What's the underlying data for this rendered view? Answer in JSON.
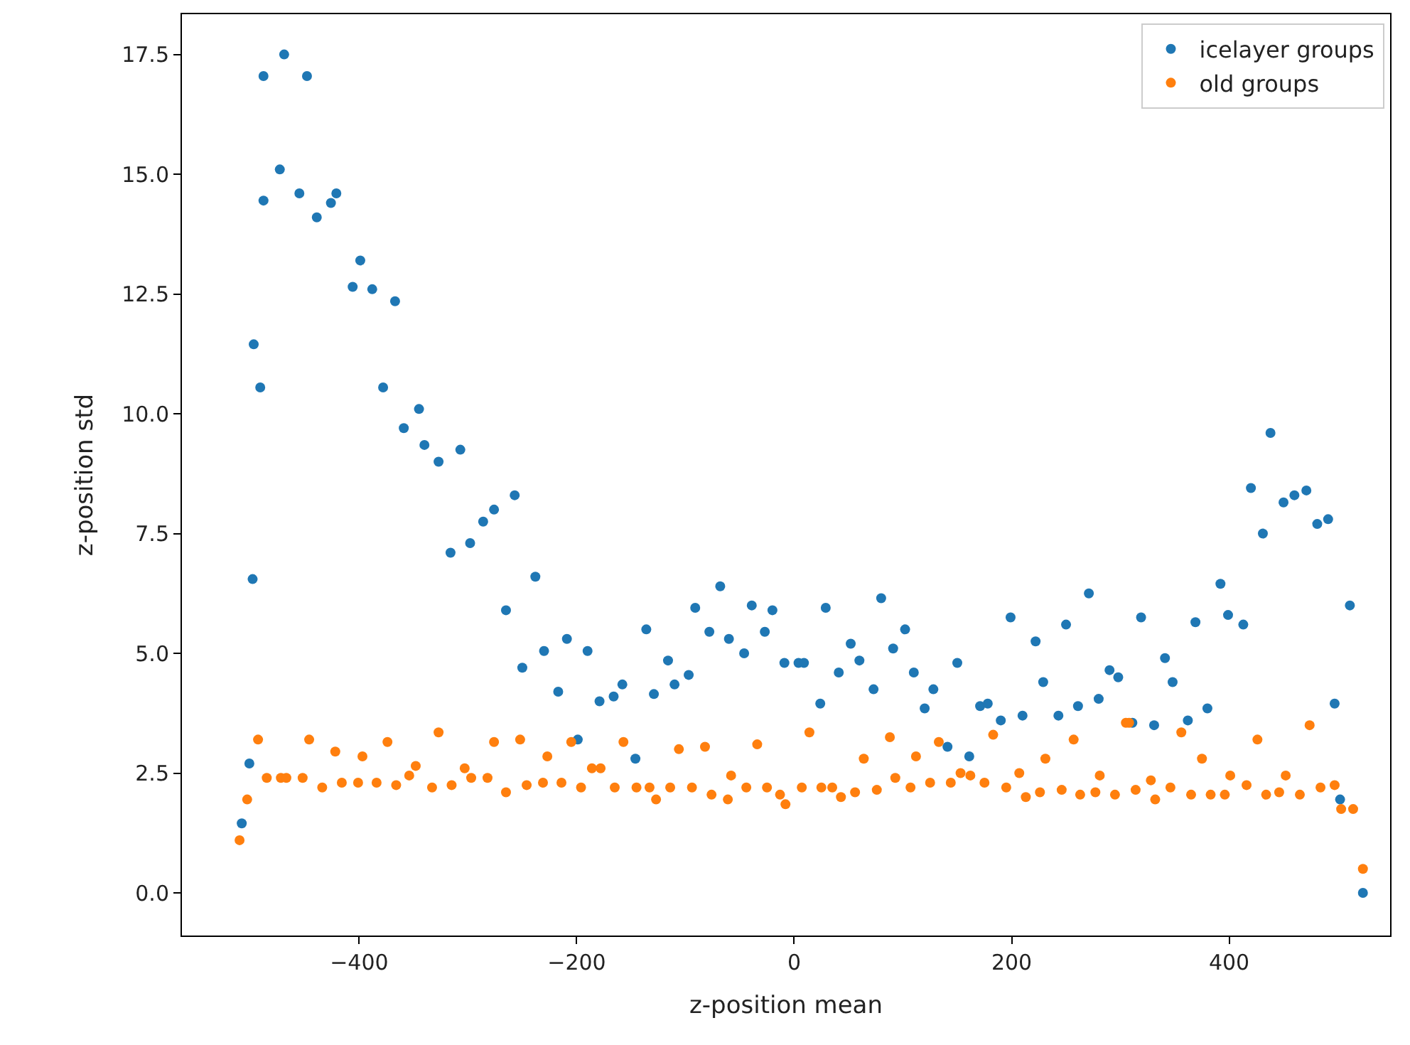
{
  "chart_data": {
    "type": "scatter",
    "xlabel": "z-position mean",
    "ylabel": "z-position std",
    "legend": "top right",
    "marker": "circle",
    "xlim": [
      -563,
      548
    ],
    "ylim": [
      -0.89,
      18.34
    ],
    "xticks": [
      {
        "value": -400,
        "label": "−400"
      },
      {
        "value": -200,
        "label": "−200"
      },
      0,
      200,
      400
    ],
    "yticks": [
      {
        "value": 0,
        "label": "0.0"
      },
      2.5,
      {
        "value": 5,
        "label": "5.0"
      },
      7.5,
      {
        "value": 10,
        "label": "10.0"
      },
      12.5,
      {
        "value": 15,
        "label": "15.0"
      },
      17.5
    ],
    "series": [
      {
        "name": "icelayer groups",
        "color": "#1f77b4",
        "x": [
          -508,
          -501,
          -498,
          -497,
          -491,
          -488,
          -488,
          -473,
          -469,
          -455,
          -448,
          -439,
          -426,
          -421,
          -406,
          -399,
          -388,
          -378,
          -367,
          -359,
          -345,
          -340,
          -327,
          -316,
          -307,
          -298,
          -286,
          -276,
          -265,
          -257,
          -250,
          -238,
          -230,
          -217,
          -209,
          -199,
          -190,
          -179,
          -166,
          -158,
          -146,
          -136,
          -129,
          -116,
          -110,
          -97,
          -91,
          -78,
          -68,
          -60,
          -46,
          -39,
          -27,
          -20,
          -9,
          4,
          9,
          24,
          29,
          41,
          52,
          60,
          73,
          80,
          91,
          102,
          110,
          120,
          128,
          141,
          150,
          161,
          171,
          178,
          190,
          199,
          210,
          222,
          229,
          243,
          250,
          261,
          271,
          280,
          290,
          298,
          311,
          319,
          331,
          341,
          348,
          362,
          369,
          380,
          392,
          399,
          413,
          420,
          431,
          438,
          450,
          460,
          471,
          481,
          491,
          497,
          502,
          511,
          523
        ],
        "values": [
          1.45,
          2.7,
          6.55,
          11.45,
          10.55,
          14.45,
          17.05,
          15.1,
          17.5,
          14.6,
          17.05,
          14.1,
          14.4,
          14.6,
          12.65,
          13.2,
          12.6,
          10.55,
          12.35,
          9.7,
          10.1,
          9.35,
          9.0,
          7.1,
          9.25,
          7.3,
          7.75,
          8.0,
          5.9,
          8.3,
          4.7,
          6.6,
          5.05,
          4.2,
          5.3,
          3.2,
          5.05,
          4.0,
          4.1,
          4.35,
          2.8,
          5.5,
          4.15,
          4.85,
          4.35,
          4.55,
          5.95,
          5.45,
          6.4,
          5.3,
          5.0,
          6.0,
          5.45,
          5.9,
          4.8,
          4.8,
          4.8,
          3.95,
          5.95,
          4.6,
          5.2,
          4.85,
          4.25,
          6.15,
          5.1,
          5.5,
          4.6,
          3.85,
          4.25,
          3.05,
          4.8,
          2.85,
          3.9,
          3.95,
          3.6,
          5.75,
          3.7,
          5.25,
          4.4,
          3.7,
          5.6,
          3.9,
          6.25,
          4.05,
          4.65,
          4.5,
          3.55,
          5.75,
          3.5,
          4.9,
          4.4,
          3.6,
          5.65,
          3.85,
          6.45,
          5.8,
          5.6,
          8.45,
          7.5,
          9.6,
          8.15,
          8.3,
          8.4,
          7.7,
          7.8,
          3.95,
          1.95,
          6.0,
          0.0
        ]
      },
      {
        "name": "old groups",
        "color": "#ff7f0e",
        "x": [
          -510,
          -503,
          -493,
          -485,
          -472,
          -467,
          -452,
          -446,
          -434,
          -422,
          -416,
          -401,
          -397,
          -384,
          -374,
          -366,
          -354,
          -348,
          -333,
          -327,
          -315,
          -303,
          -297,
          -282,
          -276,
          -265,
          -252,
          -246,
          -231,
          -227,
          -214,
          -205,
          -196,
          -186,
          -178,
          -165,
          -157,
          -145,
          -133,
          -127,
          -114,
          -106,
          -94,
          -82,
          -76,
          -61,
          -58,
          -44,
          -34,
          -25,
          -13,
          -8,
          7,
          14,
          25,
          35,
          43,
          56,
          64,
          76,
          88,
          93,
          107,
          112,
          125,
          133,
          144,
          153,
          162,
          175,
          183,
          195,
          207,
          213,
          226,
          231,
          246,
          257,
          263,
          277,
          281,
          295,
          305,
          308,
          314,
          328,
          332,
          346,
          356,
          365,
          375,
          383,
          396,
          401,
          416,
          426,
          434,
          446,
          452,
          465,
          474,
          484,
          497,
          503,
          514,
          523
        ],
        "values": [
          1.1,
          1.95,
          3.2,
          2.4,
          2.4,
          2.4,
          2.4,
          3.2,
          2.2,
          2.95,
          2.3,
          2.3,
          2.85,
          2.3,
          3.15,
          2.25,
          2.45,
          2.65,
          2.2,
          3.35,
          2.25,
          2.6,
          2.4,
          2.4,
          3.15,
          2.1,
          3.2,
          2.25,
          2.3,
          2.85,
          2.3,
          3.15,
          2.2,
          2.6,
          2.6,
          2.2,
          3.15,
          2.2,
          2.2,
          1.95,
          2.2,
          3.0,
          2.2,
          3.05,
          2.05,
          1.95,
          2.45,
          2.2,
          3.1,
          2.2,
          2.05,
          1.85,
          2.2,
          3.35,
          2.2,
          2.2,
          2.0,
          2.1,
          2.8,
          2.15,
          3.25,
          2.4,
          2.2,
          2.85,
          2.3,
          3.15,
          2.3,
          2.5,
          2.45,
          2.3,
          3.3,
          2.2,
          2.5,
          2.0,
          2.1,
          2.8,
          2.15,
          3.2,
          2.05,
          2.1,
          2.45,
          2.05,
          3.55,
          3.55,
          2.15,
          2.35,
          1.95,
          2.2,
          3.35,
          2.05,
          2.8,
          2.05,
          2.05,
          2.45,
          2.25,
          3.2,
          2.05,
          2.1,
          2.45,
          2.05,
          3.5,
          2.2,
          2.25,
          1.75,
          1.75,
          0.5
        ]
      }
    ]
  }
}
